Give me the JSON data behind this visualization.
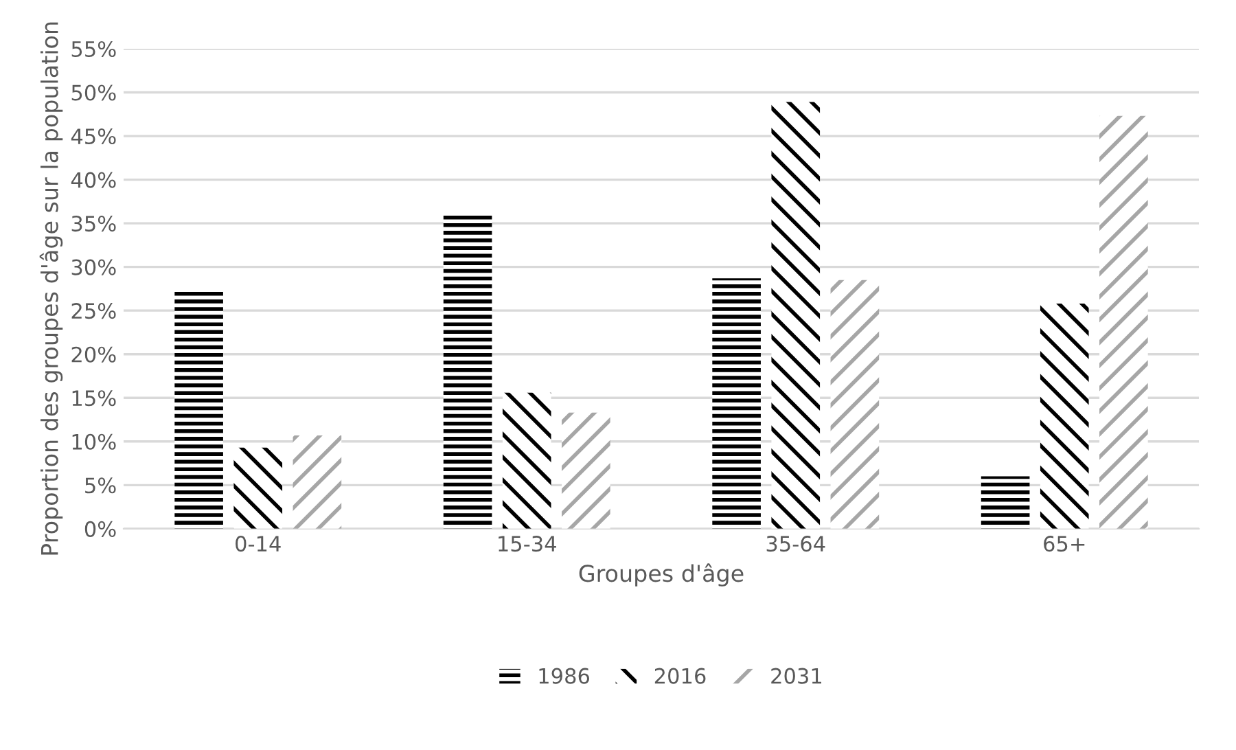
{
  "chart_data": {
    "type": "bar",
    "xlabel": "Groupes d'âge",
    "ylabel": "Proportion des groupes d'âge sur la population",
    "categories": [
      "0-14",
      "15-34",
      "35-64",
      "65+"
    ],
    "series": [
      {
        "name": "1986",
        "color": "#000000",
        "values": [
          27.5,
          35.9,
          28.7,
          6.0
        ]
      },
      {
        "name": "2016",
        "color": "#000000",
        "values": [
          9.3,
          15.6,
          48.9,
          25.8
        ]
      },
      {
        "name": "2031",
        "color": "#a6a6a6",
        "values": [
          10.7,
          13.3,
          28.5,
          47.3
        ]
      }
    ],
    "ylim": [
      0,
      55
    ],
    "yticks": [
      {
        "value": 0,
        "label": "0%"
      },
      {
        "value": 5,
        "label": "5%"
      },
      {
        "value": 10,
        "label": "10%"
      },
      {
        "value": 15,
        "label": "15%"
      },
      {
        "value": 20,
        "label": "20%"
      },
      {
        "value": 25,
        "label": "25%"
      },
      {
        "value": 30,
        "label": "30%"
      },
      {
        "value": 35,
        "label": "35%"
      },
      {
        "value": 40,
        "label": "40%"
      },
      {
        "value": 45,
        "label": "45%"
      },
      {
        "value": 50,
        "label": "50%"
      },
      {
        "value": 55,
        "label": "55%"
      }
    ],
    "grid": "y",
    "legend": "bottom"
  }
}
